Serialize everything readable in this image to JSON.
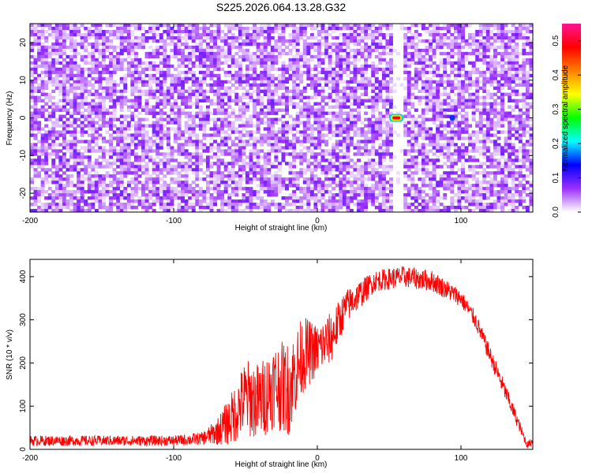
{
  "figure": {
    "title": "S225.2026.064.13.28.G32"
  },
  "chart_data": [
    {
      "type": "heatmap",
      "xlabel": "Height of straight line (km)",
      "ylabel": "Frequency (Hz)",
      "xlim": [
        -200,
        150
      ],
      "ylim": [
        -25,
        25
      ],
      "x_ticks": [
        -200,
        -100,
        0,
        100
      ],
      "y_ticks": [
        -20,
        -10,
        0,
        10,
        20
      ],
      "colorbar": {
        "label": "Normalized spectral amplitude",
        "range": [
          0.0,
          0.55
        ],
        "ticks": [
          0.0,
          0.1,
          0.2,
          0.3,
          0.4,
          0.5
        ],
        "colormap": [
          "#ffffff",
          "#9b30ff",
          "#0000ff",
          "#00ffff",
          "#00ff00",
          "#ffff00",
          "#ff7f00",
          "#ff0000",
          "#ff1493"
        ]
      },
      "background_level": 0.04,
      "features": [
        {
          "kind": "vertical_band",
          "x_range": [
            52,
            60
          ],
          "level": 0.0
        },
        {
          "kind": "peak",
          "x": 55,
          "y": 0,
          "value": 0.55
        },
        {
          "kind": "peak",
          "x": 94,
          "y": 0,
          "value": 0.15
        }
      ]
    },
    {
      "type": "line",
      "xlabel": "Height of straight line (km)",
      "ylabel": "SNR (10 * v/v)",
      "xlim": [
        -200,
        150
      ],
      "ylim": [
        0,
        440
      ],
      "x_ticks": [
        -200,
        -100,
        0,
        100
      ],
      "y_ticks": [
        0,
        100,
        200,
        300,
        400
      ],
      "series_color": "#ff0000",
      "envelope": {
        "x": [
          -200,
          -150,
          -100,
          -80,
          -70,
          -60,
          -50,
          -40,
          -30,
          -20,
          -10,
          0,
          10,
          20,
          40,
          60,
          80,
          100,
          110,
          120,
          130,
          140,
          146,
          150
        ],
        "mean": [
          20,
          20,
          20,
          25,
          40,
          70,
          120,
          110,
          150,
          140,
          220,
          230,
          260,
          330,
          390,
          400,
          390,
          350,
          300,
          220,
          140,
          60,
          10,
          20
        ],
        "spread": [
          12,
          12,
          12,
          15,
          30,
          60,
          90,
          90,
          100,
          110,
          90,
          60,
          60,
          40,
          25,
          25,
          25,
          20,
          20,
          20,
          20,
          15,
          8,
          10
        ]
      }
    }
  ]
}
